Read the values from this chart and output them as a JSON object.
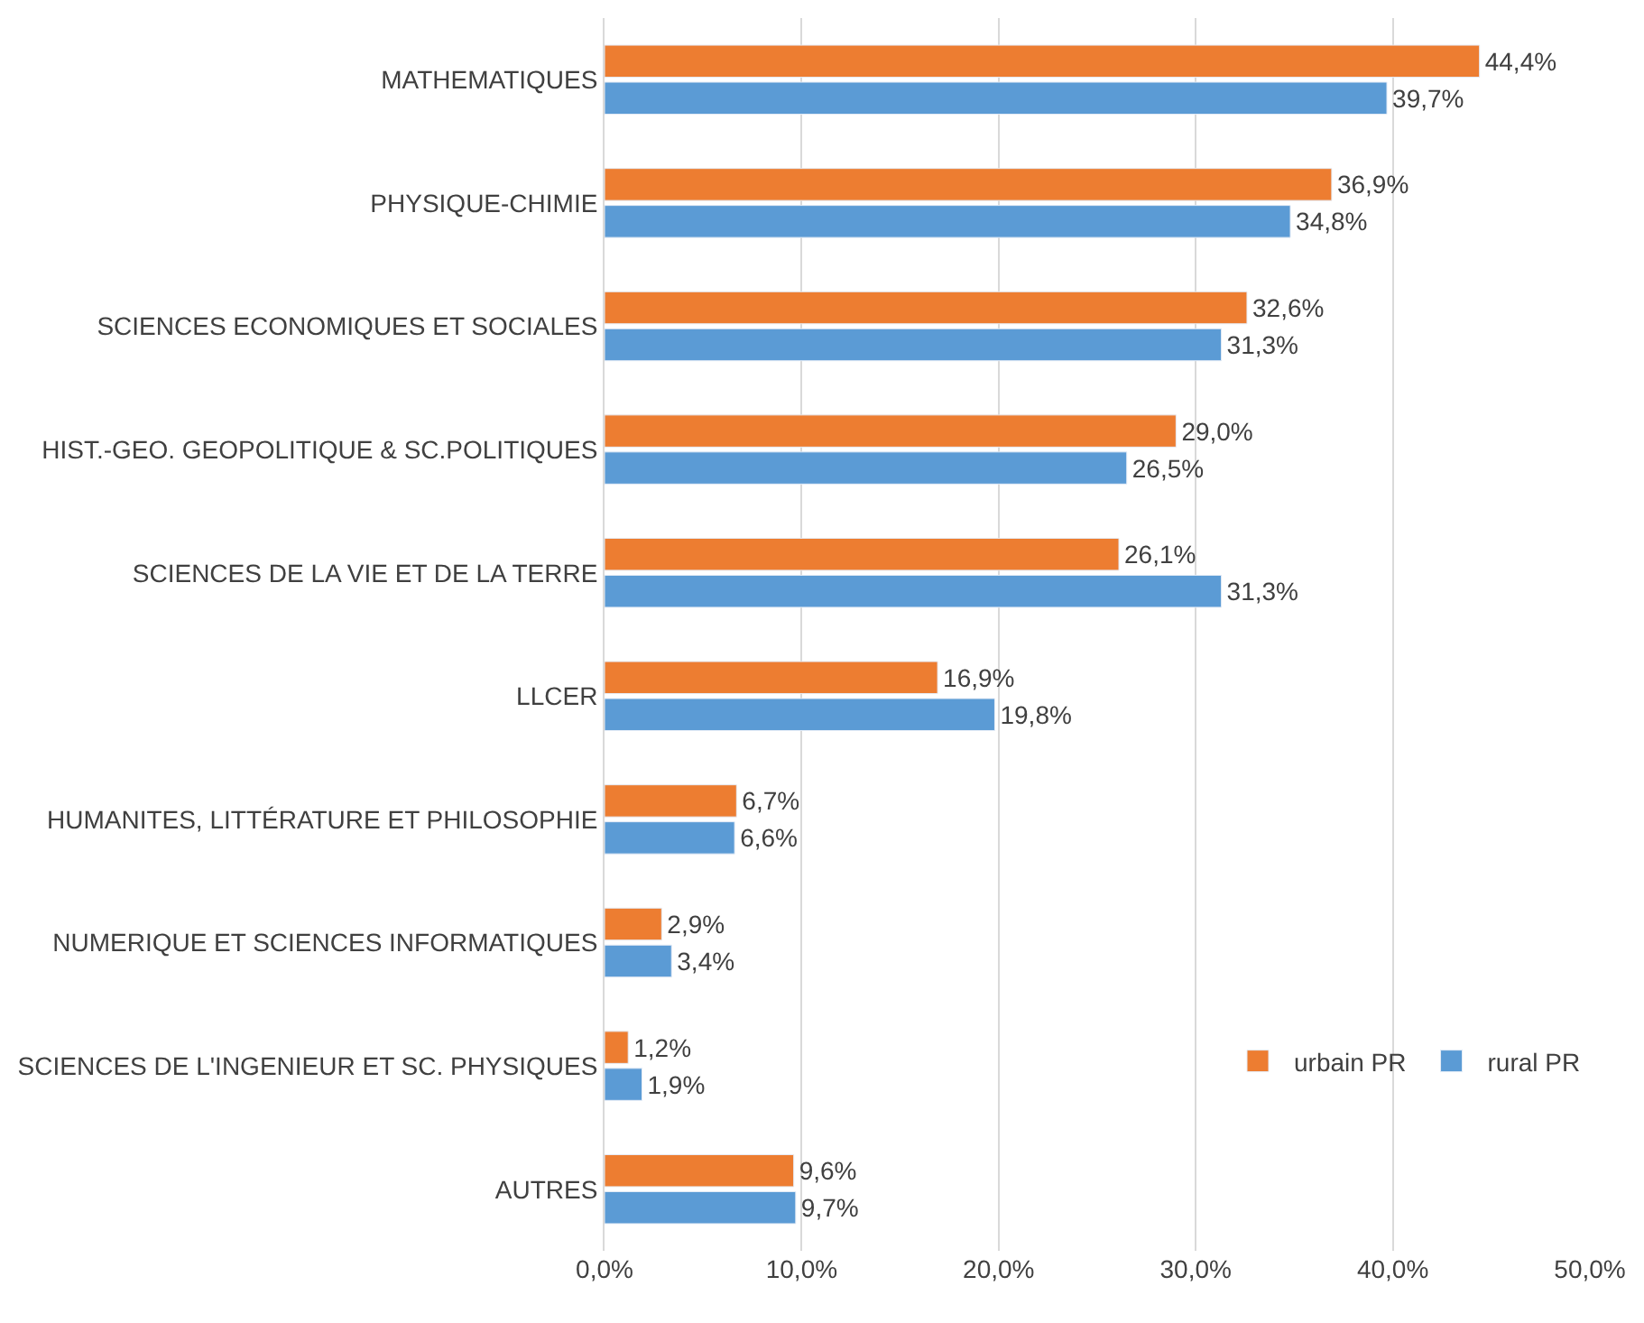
{
  "chart_data": {
    "type": "bar",
    "orientation": "horizontal",
    "categories": [
      "MATHEMATIQUES",
      "PHYSIQUE-CHIMIE",
      "SCIENCES ECONOMIQUES ET SOCIALES",
      "HIST.-GEO. GEOPOLITIQUE & SC.POLITIQUES",
      "SCIENCES DE LA VIE ET DE LA TERRE",
      "LLCER",
      "HUMANITES, LITTÉRATURE ET PHILOSOPHIE",
      "NUMERIQUE ET SCIENCES INFORMATIQUES",
      "SCIENCES DE L'INGENIEUR ET SC. PHYSIQUES",
      "AUTRES"
    ],
    "series": [
      {
        "name": "urbain PR",
        "color": "#ed7d31",
        "values": [
          44.4,
          36.9,
          32.6,
          29.0,
          26.1,
          16.9,
          6.7,
          2.9,
          1.2,
          9.6
        ],
        "value_labels": [
          "44,4%",
          "36,9%",
          "32,6%",
          "29,0%",
          "26,1%",
          "16,9%",
          "6,7%",
          "2,9%",
          "1,2%",
          "9,6%"
        ]
      },
      {
        "name": "rural PR",
        "color": "#5b9bd5",
        "values": [
          39.7,
          34.8,
          31.3,
          26.5,
          31.3,
          19.8,
          6.6,
          3.4,
          1.9,
          9.7
        ],
        "value_labels": [
          "39,7%",
          "34,8%",
          "31,3%",
          "26,5%",
          "31,3%",
          "19,8%",
          "6,6%",
          "3,4%",
          "1,9%",
          "9,7%"
        ]
      }
    ],
    "xlim": [
      0,
      50
    ],
    "xticks": [
      {
        "value": 0,
        "label": "0,0%"
      },
      {
        "value": 10,
        "label": "10,0%"
      },
      {
        "value": 20,
        "label": "20,0%"
      },
      {
        "value": 30,
        "label": "30,0%"
      },
      {
        "value": 40,
        "label": "40,0%"
      },
      {
        "value": 50,
        "label": "50,0%"
      }
    ],
    "grid": "x",
    "legend": "bottom right"
  }
}
